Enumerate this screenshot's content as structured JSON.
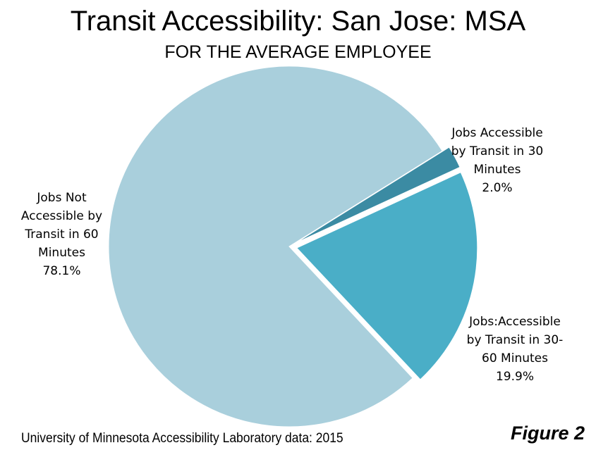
{
  "chart_data": {
    "type": "pie",
    "title": "Transit Accessibility: San Jose: MSA",
    "subtitle": "FOR THE AVERAGE EMPLOYEE",
    "slices": [
      {
        "label": "Jobs Accessible by Transit in 30 Minutes",
        "value": 2.0,
        "value_label": "2.0%",
        "color": "#3b8ba3",
        "exploded": true
      },
      {
        "label": "Jobs:Accessible by Transit in 30-60 Minutes",
        "value": 19.9,
        "value_label": "19.9%",
        "color": "#4aaec7",
        "exploded": true
      },
      {
        "label": "Jobs Not Accessible by Transit in 60 Minutes",
        "value": 78.1,
        "value_label": "78.1%",
        "color": "#a9cfdc",
        "exploded": false
      }
    ]
  },
  "labels": {
    "slice_0": "Jobs Accessible\nby Transit in 30\nMinutes\n2.0%",
    "slice_1": "Jobs:Accessible\nby Transit in 30-\n60 Minutes\n19.9%",
    "slice_2": "Jobs Not\nAccessible by\nTransit in 60\nMinutes\n78.1%"
  },
  "footer": {
    "source": "University of Minnesota Accessibility Laboratory data: 2015",
    "figure": "Figure 2"
  }
}
